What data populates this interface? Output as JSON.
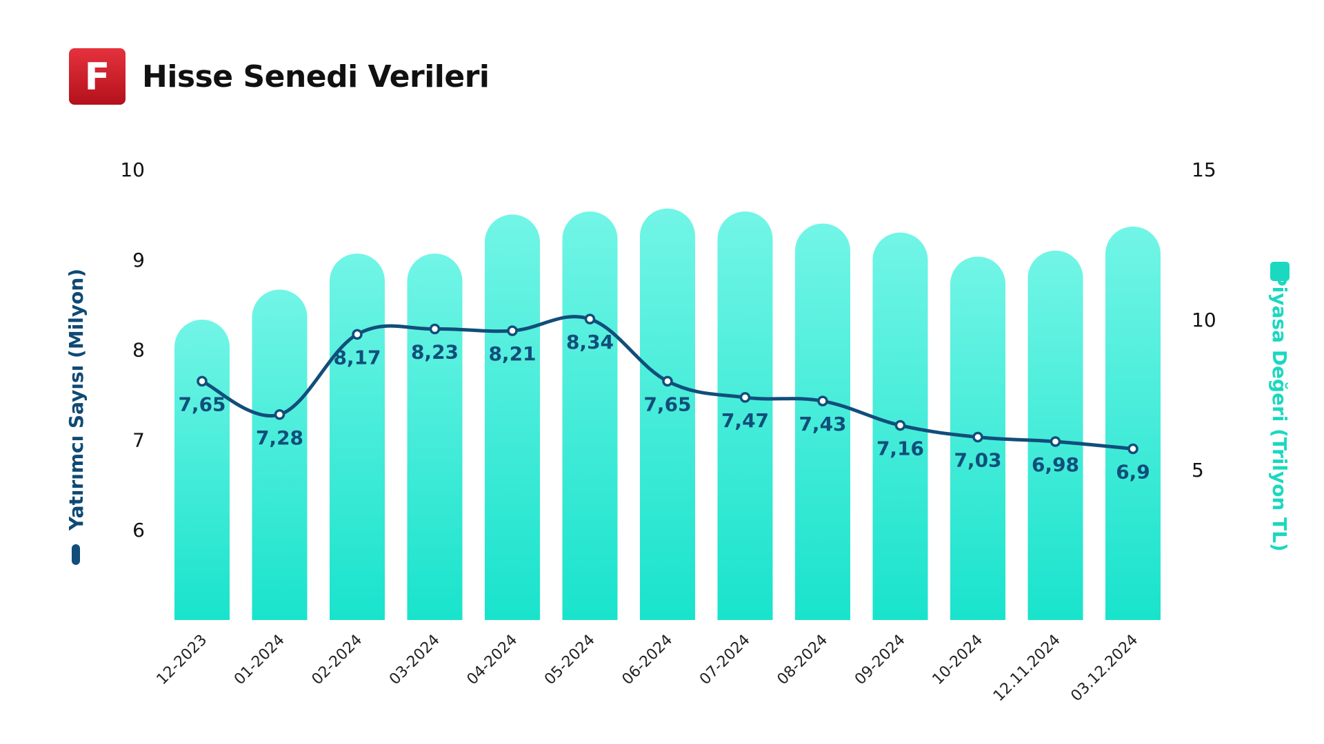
{
  "header": {
    "logo_letter": "F",
    "title": "Hisse Senedi Verileri"
  },
  "colors": {
    "logo": "#c8202b",
    "bar_top": "#72f5e6",
    "bar_bottom": "#19e3cc",
    "line": "#114e7a",
    "right_axis_title": "#1bd8c0"
  },
  "chart_data": {
    "type": "bar+line",
    "categories": [
      "12-2023",
      "01-2024",
      "02-2024",
      "03-2024",
      "04-2024",
      "05-2024",
      "06-2024",
      "07-2024",
      "08-2024",
      "09-2024",
      "10-2024",
      "12.11.2024",
      "03.12.2024"
    ],
    "series": [
      {
        "name": "Yatırımcı Sayısı (Milyon)",
        "type": "line",
        "axis": "left",
        "values": [
          7.65,
          7.28,
          8.17,
          8.23,
          8.21,
          8.34,
          7.65,
          7.47,
          7.43,
          7.16,
          7.03,
          6.98,
          6.9
        ],
        "labels": [
          "7,65",
          "7,28",
          "8,17",
          "8,23",
          "8,21",
          "8,34",
          "7,65",
          "7,47",
          "7,43",
          "7,16",
          "7,03",
          "6,98",
          "6,9"
        ]
      },
      {
        "name": "Piyasa Değeri (Trilyon TL)",
        "type": "bar",
        "axis": "right",
        "values": [
          10.0,
          11.0,
          12.2,
          12.2,
          13.5,
          13.6,
          13.7,
          13.6,
          13.2,
          12.9,
          12.1,
          12.3,
          13.1
        ]
      }
    ],
    "yleft": {
      "label": "Yatırımcı Sayısı (Milyon)",
      "ticks": [
        6,
        7,
        8,
        9,
        10
      ],
      "range": [
        5,
        10
      ]
    },
    "yright": {
      "label": "Piyasa Değeri (Trilyon TL)",
      "ticks": [
        5,
        10,
        15
      ],
      "range": [
        0,
        15
      ]
    },
    "grid": false,
    "legend": "axis titles"
  }
}
